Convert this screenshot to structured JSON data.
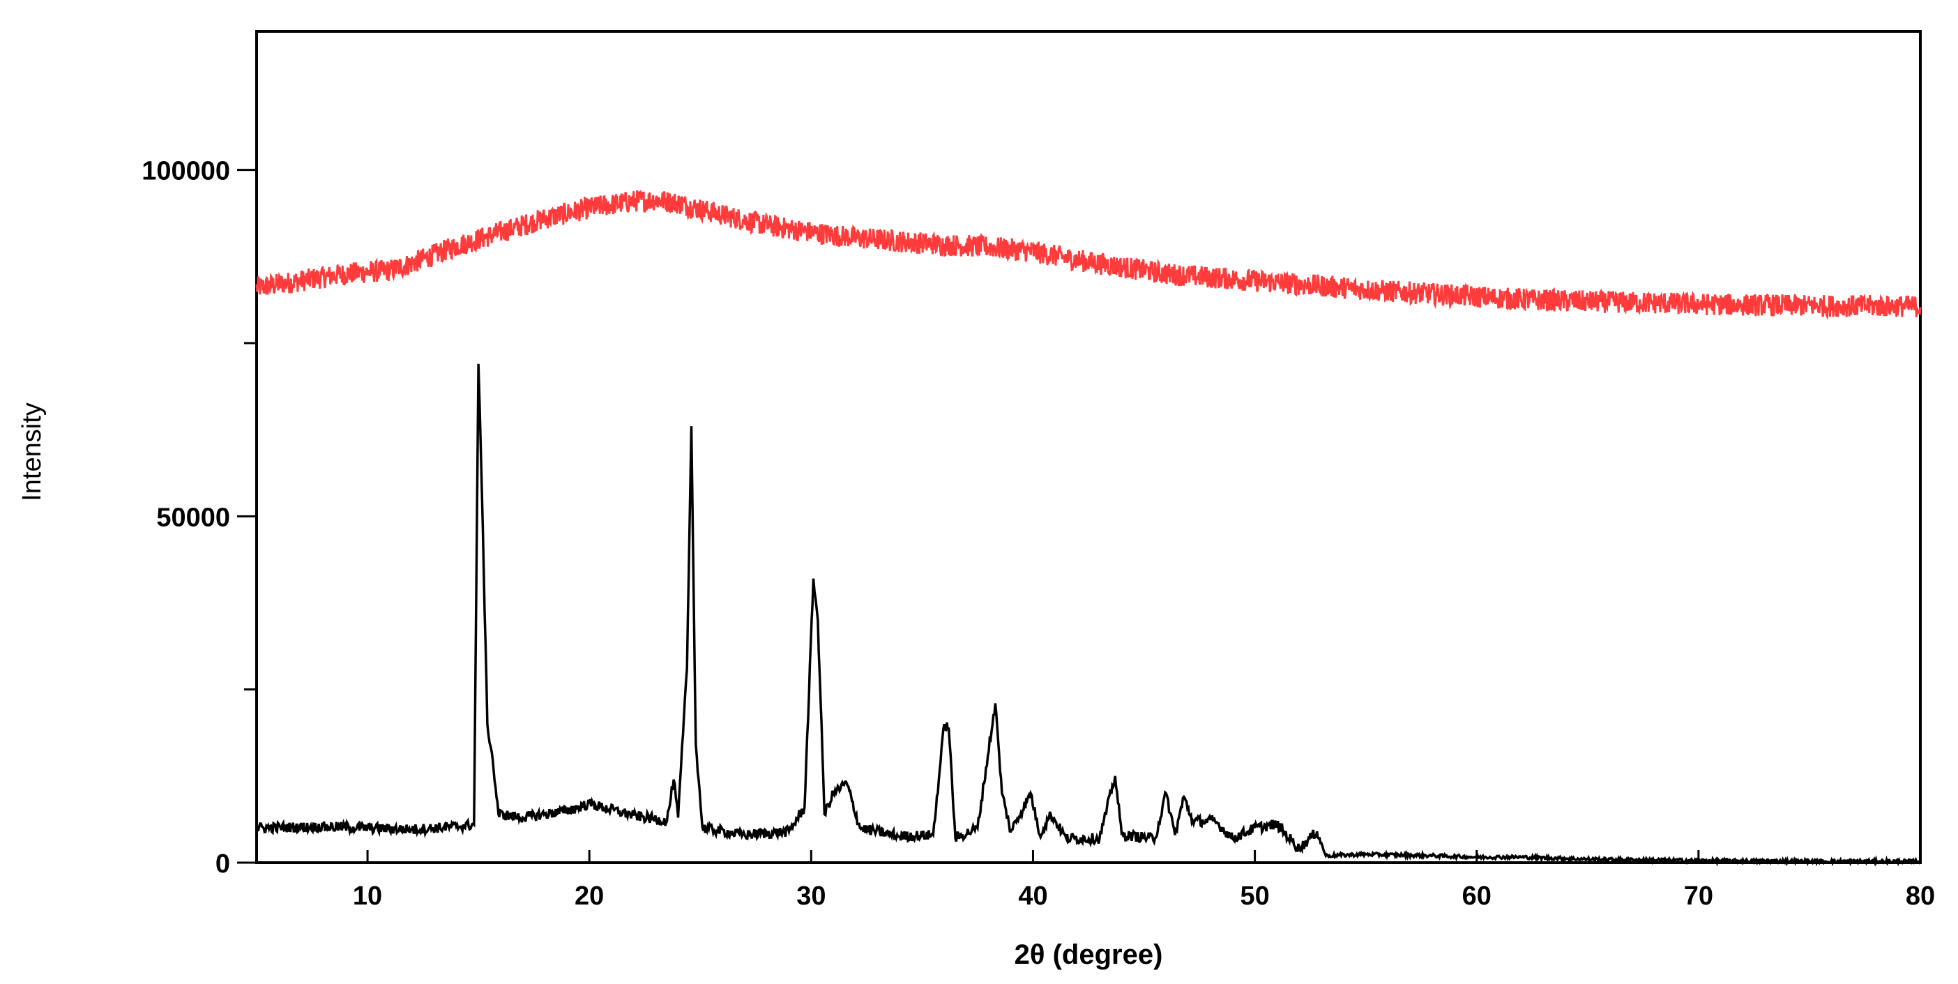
{
  "chart_data": {
    "type": "line",
    "title": "",
    "xlabel": "2θ (degree)",
    "ylabel": "Intensity",
    "xlim": [
      5,
      80
    ],
    "ylim": [
      0,
      120000
    ],
    "x_ticks": [
      10,
      20,
      30,
      40,
      50,
      60,
      70,
      80
    ],
    "x_tick_labels": [
      "10",
      "20",
      "30",
      "40",
      "50",
      "60",
      "70",
      "80"
    ],
    "y_ticks_major": [
      0,
      50000,
      100000
    ],
    "y_tick_labels": [
      "0",
      "50000",
      "100000"
    ],
    "y_ticks_minor": [
      25000,
      75000
    ],
    "grid": false,
    "legend": "none",
    "series": [
      {
        "color": "#ff3b3b",
        "values_description": "broad amorphous hump",
        "points": [
          [
            5,
            83000
          ],
          [
            7,
            84000
          ],
          [
            9,
            85000
          ],
          [
            11,
            85500
          ],
          [
            12,
            86500
          ],
          [
            14,
            89000
          ],
          [
            16,
            91000
          ],
          [
            18,
            93000
          ],
          [
            20,
            94500
          ],
          [
            22,
            95500
          ],
          [
            23,
            95700
          ],
          [
            24,
            95200
          ],
          [
            26,
            93500
          ],
          [
            28,
            92000
          ],
          [
            30,
            91000
          ],
          [
            32,
            90200
          ],
          [
            34,
            89700
          ],
          [
            36,
            89200
          ],
          [
            38,
            88900
          ],
          [
            40,
            88200
          ],
          [
            42,
            87000
          ],
          [
            44,
            86000
          ],
          [
            46,
            85000
          ],
          [
            48,
            84500
          ],
          [
            50,
            84000
          ],
          [
            52,
            83500
          ],
          [
            54,
            83000
          ],
          [
            56,
            82500
          ],
          [
            58,
            82100
          ],
          [
            60,
            81700
          ],
          [
            62,
            81300
          ],
          [
            65,
            81000
          ],
          [
            68,
            80800
          ],
          [
            70,
            80600
          ],
          [
            75,
            80400
          ],
          [
            80,
            80300
          ]
        ]
      },
      {
        "color": "#000000",
        "values_description": "crystalline diffraction pattern",
        "points": [
          [
            5,
            5000
          ],
          [
            8,
            5200
          ],
          [
            10,
            5000
          ],
          [
            12,
            4800
          ],
          [
            14,
            5200
          ],
          [
            14.8,
            5500
          ],
          [
            15.0,
            72000
          ],
          [
            15.2,
            48000
          ],
          [
            15.4,
            20000
          ],
          [
            15.6,
            16000
          ],
          [
            15.9,
            7000
          ],
          [
            17,
            6500
          ],
          [
            19,
            7500
          ],
          [
            20,
            8500
          ],
          [
            22,
            6800
          ],
          [
            23.5,
            6000
          ],
          [
            23.8,
            12000
          ],
          [
            24.0,
            6500
          ],
          [
            24.4,
            28000
          ],
          [
            24.6,
            63000
          ],
          [
            24.8,
            17000
          ],
          [
            25.1,
            5000
          ],
          [
            27,
            4000
          ],
          [
            29,
            4500
          ],
          [
            29.7,
            8000
          ],
          [
            30.1,
            41000
          ],
          [
            30.3,
            35000
          ],
          [
            30.6,
            7000
          ],
          [
            31.0,
            10000
          ],
          [
            31.6,
            11500
          ],
          [
            32.2,
            5000
          ],
          [
            34,
            3800
          ],
          [
            35.5,
            4000
          ],
          [
            36.0,
            20000
          ],
          [
            36.2,
            19500
          ],
          [
            36.5,
            3500
          ],
          [
            37.5,
            5000
          ],
          [
            38.3,
            23000
          ],
          [
            38.6,
            10000
          ],
          [
            39.0,
            4500
          ],
          [
            39.9,
            10000
          ],
          [
            40.3,
            4000
          ],
          [
            40.8,
            7000
          ],
          [
            41.5,
            3500
          ],
          [
            43.0,
            3500
          ],
          [
            43.7,
            12500
          ],
          [
            44.0,
            4000
          ],
          [
            45.5,
            3500
          ],
          [
            46.0,
            10000
          ],
          [
            46.4,
            4000
          ],
          [
            46.8,
            9500
          ],
          [
            47.2,
            6000
          ],
          [
            48.2,
            6000
          ],
          [
            49.0,
            3500
          ],
          [
            50.0,
            5000
          ],
          [
            51.0,
            5500
          ],
          [
            52.0,
            2000
          ],
          [
            52.8,
            4500
          ],
          [
            53.2,
            1000
          ],
          [
            55,
            1200
          ],
          [
            58,
            1000
          ],
          [
            60,
            800
          ],
          [
            62,
            800
          ],
          [
            65,
            500
          ],
          [
            70,
            300
          ],
          [
            75,
            200
          ],
          [
            80,
            200
          ]
        ]
      }
    ]
  }
}
